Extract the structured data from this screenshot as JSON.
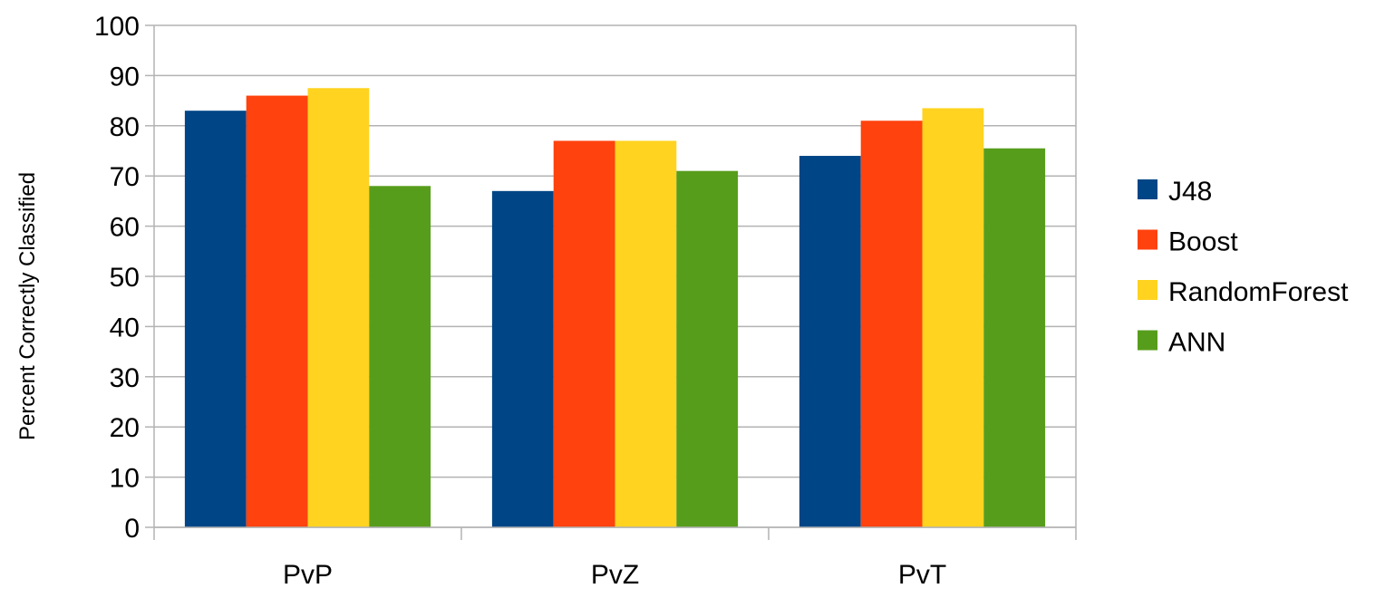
{
  "chart_data": {
    "type": "bar",
    "title": "",
    "xlabel": "",
    "ylabel": "Percent Correctly Classified",
    "ylim": [
      0,
      100
    ],
    "yticks": [
      0,
      10,
      20,
      30,
      40,
      50,
      60,
      70,
      80,
      90,
      100
    ],
    "grid": true,
    "legend_position": "right",
    "categories": [
      "PvP",
      "PvZ",
      "PvT"
    ],
    "series": [
      {
        "name": "J48",
        "color": "#004586",
        "values": [
          83,
          67,
          74
        ]
      },
      {
        "name": "Boost",
        "color": "#ff420e",
        "values": [
          86,
          77,
          81
        ]
      },
      {
        "name": "RandomForest",
        "color": "#ffd320",
        "values": [
          87.5,
          77,
          83.5
        ]
      },
      {
        "name": "ANN",
        "color": "#579d1c",
        "values": [
          68,
          71,
          75.5
        ]
      }
    ]
  }
}
